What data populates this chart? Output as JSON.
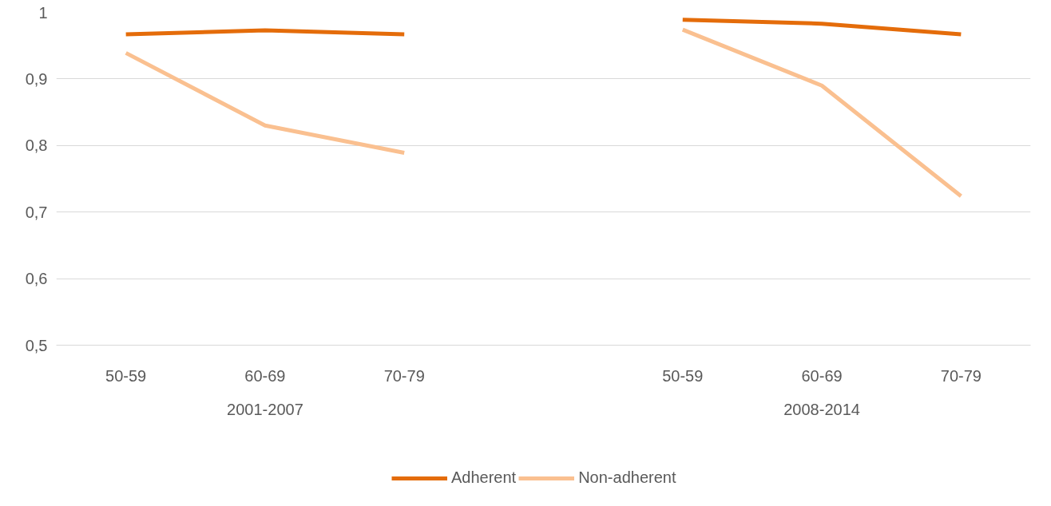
{
  "chart_data": {
    "type": "line",
    "categories": [
      "50-59",
      "60-69",
      "70-79",
      null,
      "50-59",
      "60-69",
      "70-79"
    ],
    "annotations": [
      "2001-2007",
      "2008-2014"
    ],
    "series": [
      {
        "name": "Adherent",
        "color": "#e46c0a",
        "values": [
          0.967,
          0.973,
          0.967,
          null,
          0.989,
          0.983,
          0.967
        ]
      },
      {
        "name": "Non-adherent",
        "color": "#fac090",
        "values": [
          0.939,
          0.83,
          0.789,
          null,
          0.974,
          0.89,
          0.724
        ]
      }
    ],
    "ylim": [
      0.5,
      1
    ],
    "yticks": [
      {
        "value": 0.5,
        "label": "0,5"
      },
      {
        "value": 0.6,
        "label": "0,6"
      },
      {
        "value": 0.7,
        "label": "0,7"
      },
      {
        "value": 0.8,
        "label": "0,8"
      },
      {
        "value": 0.9,
        "label": "0,9"
      },
      1
    ],
    "grid": "y",
    "legend": "bottom",
    "line_style": "solid",
    "marker": "none"
  }
}
